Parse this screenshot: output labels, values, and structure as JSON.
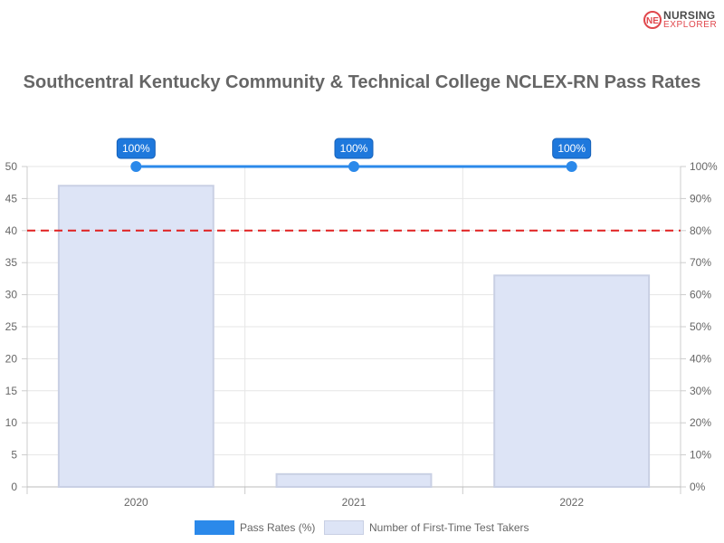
{
  "brand": {
    "line1": "NURSING",
    "line2": "EXPLORER",
    "mark": "NE"
  },
  "chart_data": {
    "type": "bar",
    "title": "Southcentral Kentucky Community & Technical College NCLEX-RN Pass Rates",
    "categories": [
      "2020",
      "2021",
      "2022"
    ],
    "series": [
      {
        "name": "Pass Rates (%)",
        "type": "line",
        "axis": "right",
        "values": [
          100,
          100,
          100
        ],
        "labels": [
          "100%",
          "100%",
          "100%"
        ],
        "color": "#2b89ea"
      },
      {
        "name": "Number of First-Time Test Takers",
        "type": "bar",
        "axis": "left",
        "values": [
          47,
          2,
          33
        ],
        "color": "#dde4f6",
        "border": "#c9d0e4"
      }
    ],
    "left_axis": {
      "min": 0,
      "max": 50,
      "step": 5,
      "ticks": [
        "0",
        "5",
        "10",
        "15",
        "20",
        "25",
        "30",
        "35",
        "40",
        "45",
        "50"
      ]
    },
    "right_axis": {
      "min": 0,
      "max": 100,
      "step": 10,
      "ticks": [
        "0%",
        "10%",
        "20%",
        "30%",
        "40%",
        "50%",
        "60%",
        "70%",
        "80%",
        "90%",
        "100%"
      ]
    },
    "reference_line": {
      "axis": "right",
      "value": 80,
      "color": "#e02020",
      "style": "dashed"
    },
    "grid": true,
    "legend_position": "bottom"
  }
}
